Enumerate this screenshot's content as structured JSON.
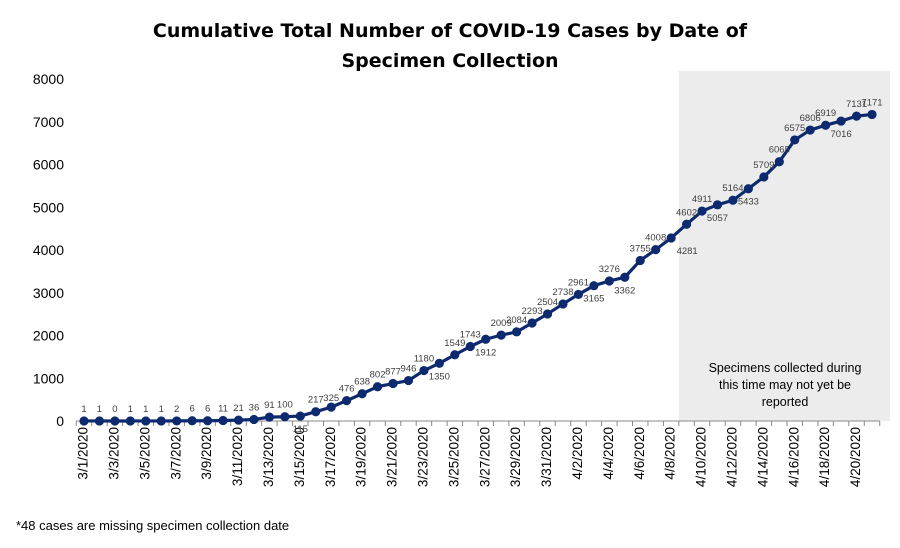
{
  "chart_data": {
    "type": "line",
    "title_lines": [
      "Cumulative Total Number of COVID-19 Cases by Date of",
      "Specimen Collection"
    ],
    "xlabel": "",
    "ylabel": "",
    "ylim": [
      0,
      8000
    ],
    "yticks": [
      "0",
      "1000",
      "2000",
      "3000",
      "4000",
      "5000",
      "6000",
      "7000",
      "8000"
    ],
    "grid": false,
    "line_color": "#0e2a6e",
    "shade_color": "#ececec",
    "x": [
      "3/1/2020",
      "3/2/2020",
      "3/3/2020",
      "3/4/2020",
      "3/5/2020",
      "3/6/2020",
      "3/7/2020",
      "3/8/2020",
      "3/9/2020",
      "3/10/2020",
      "3/11/2020",
      "3/12/2020",
      "3/13/2020",
      "3/14/2020",
      "3/15/2020",
      "3/16/2020",
      "3/17/2020",
      "3/18/2020",
      "3/19/2020",
      "3/20/2020",
      "3/21/2020",
      "3/22/2020",
      "3/23/2020",
      "3/24/2020",
      "3/25/2020",
      "3/26/2020",
      "3/27/2020",
      "3/28/2020",
      "3/29/2020",
      "3/30/2020",
      "3/31/2020",
      "4/1/2020",
      "4/2/2020",
      "4/3/2020",
      "4/4/2020",
      "4/5/2020",
      "4/6/2020",
      "4/7/2020",
      "4/8/2020",
      "4/9/2020",
      "4/10/2020",
      "4/11/2020",
      "4/12/2020",
      "4/13/2020",
      "4/14/2020",
      "4/15/2020",
      "4/16/2020",
      "4/17/2020",
      "4/18/2020",
      "4/19/2020",
      "4/20/2020",
      "4/21/2020"
    ],
    "xtick_labels": [
      "3/1/2020",
      "3/3/2020",
      "3/5/2020",
      "3/7/2020",
      "3/9/2020",
      "3/11/2020",
      "3/13/2020",
      "3/15/2020",
      "3/17/2020",
      "3/19/2020",
      "3/21/2020",
      "3/23/2020",
      "3/25/2020",
      "3/27/2020",
      "3/29/2020",
      "3/31/2020",
      "4/2/2020",
      "4/4/2020",
      "4/6/2020",
      "4/8/2020",
      "4/10/2020",
      "4/12/2020",
      "4/14/2020",
      "4/16/2020",
      "4/18/2020",
      "4/20/2020"
    ],
    "series": [
      {
        "values": [
          1,
          1,
          0,
          1,
          1,
          1,
          2,
          6,
          6,
          11,
          21,
          36,
          91,
          100,
          115,
          217,
          325,
          476,
          638,
          802,
          877,
          946,
          1180,
          1350,
          1549,
          1743,
          1912,
          2009,
          2084,
          2293,
          2504,
          2738,
          2961,
          3165,
          3276,
          3362,
          3755,
          4008,
          4281,
          4602,
          4911,
          5057,
          5164,
          5433,
          5709,
          6065,
          6575,
          6806,
          6919,
          7016,
          7131,
          7171
        ]
      }
    ],
    "shaded_region": {
      "from": "4/9/2020",
      "to": "4/21/2020",
      "note_lines": [
        "Specimens collected during",
        "this time may not yet be",
        "reported"
      ]
    }
  },
  "footnote": "*48 cases are missing specimen collection date"
}
